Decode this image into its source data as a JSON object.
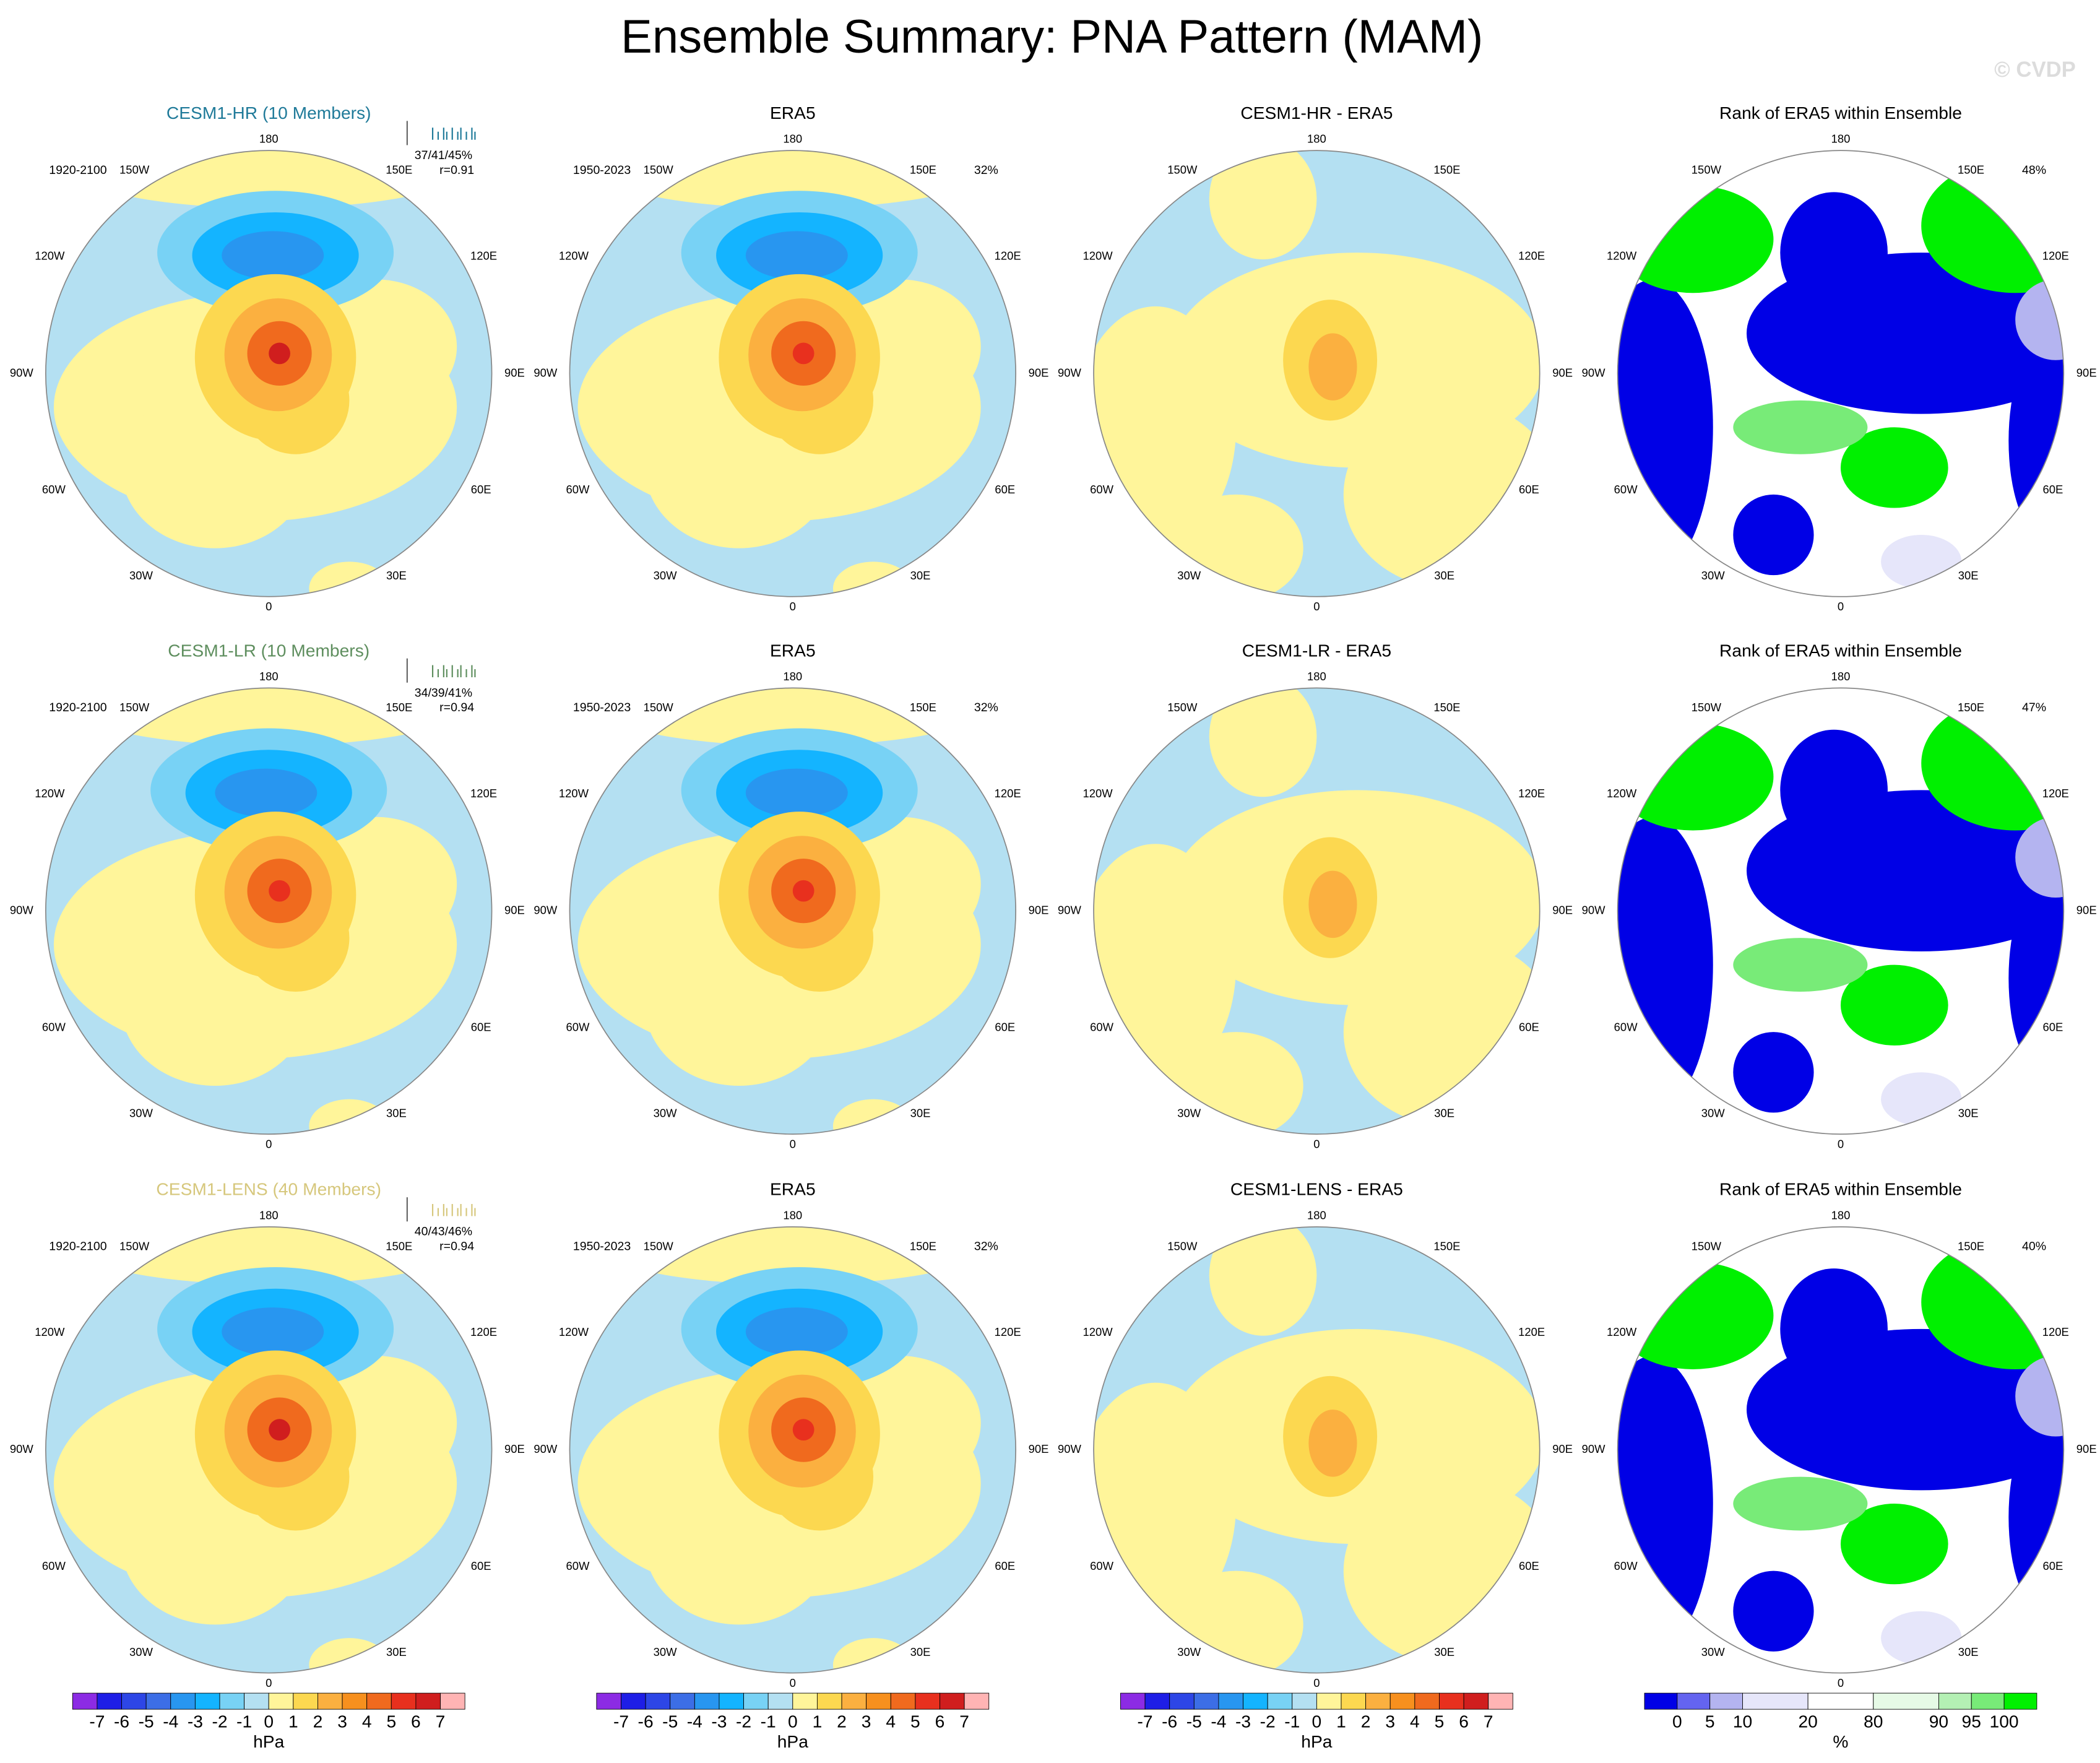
{
  "title": "Ensemble Summary: PNA Pattern (MAM)",
  "watermark": "© CVDP",
  "longitude_labels": [
    "180",
    "150W",
    "150E",
    "120W",
    "120E",
    "90W",
    "90E",
    "60W",
    "60E",
    "30W",
    "30E",
    "0"
  ],
  "rows": [
    {
      "model_title": "CESM1-HR (10 Members)",
      "model_color": "#1f7a99",
      "period": "1920-2100",
      "stats": "37/41/45%",
      "r": "r=0.91",
      "obs_title": "ERA5",
      "obs_period": "1950-2023",
      "obs_pct": "32%",
      "diff_title": "CESM1-HR - ERA5",
      "rank_title": "Rank of ERA5 within Ensemble",
      "rank_pct": "48%"
    },
    {
      "model_title": "CESM1-LR (10 Members)",
      "model_color": "#5e8e5e",
      "period": "1920-2100",
      "stats": "34/39/41%",
      "r": "r=0.94",
      "obs_title": "ERA5",
      "obs_period": "1950-2023",
      "obs_pct": "32%",
      "diff_title": "CESM1-LR - ERA5",
      "rank_title": "Rank of ERA5 within Ensemble",
      "rank_pct": "47%"
    },
    {
      "model_title": "CESM1-LENS (40 Members)",
      "model_color": "#d6c77c",
      "period": "1920-2100",
      "stats": "40/43/46%",
      "r": "r=0.94",
      "obs_title": "ERA5",
      "obs_period": "1950-2023",
      "obs_pct": "32%",
      "diff_title": "CESM1-LENS - ERA5",
      "rank_title": "Rank of ERA5 within Ensemble",
      "rank_pct": "40%"
    }
  ],
  "colorbars": {
    "hpa": {
      "unit": "hPa",
      "labels": [
        -7,
        -6,
        -5,
        -4,
        -3,
        -2,
        -1,
        0,
        1,
        2,
        3,
        4,
        5,
        6,
        7
      ],
      "colors": [
        "#8c2be4",
        "#1e1ee6",
        "#2d46e6",
        "#3c6ee6",
        "#2896f0",
        "#14b4ff",
        "#78d2f5",
        "#b4e0f2",
        "#fff59a",
        "#fcd850",
        "#fbb040",
        "#f7901e",
        "#f06a1e",
        "#e8301e",
        "#d01e1e",
        "#ffb4b4"
      ]
    },
    "rank": {
      "unit": "%",
      "labels": [
        0,
        5,
        10,
        20,
        80,
        90,
        95,
        100
      ],
      "colors": [
        "#0000e6",
        "#6464f0",
        "#b4b4f0",
        "#e6e6fa",
        "#ffffff",
        "#e6fae6",
        "#b4f0b4",
        "#78eb78",
        "#00f000"
      ]
    }
  }
}
